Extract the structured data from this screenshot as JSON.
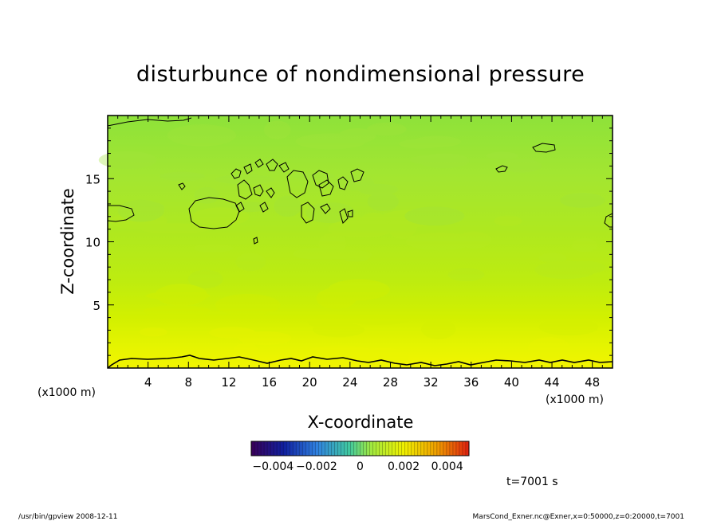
{
  "chart_data": {
    "type": "heatmap",
    "title": "disturbunce of nondimensional pressure",
    "xlabel": "X-coordinate",
    "ylabel": "Z-coordinate",
    "x_unit_left": "(x1000 m)",
    "x_unit_right": "(x1000 m)",
    "xlim": [
      0,
      50
    ],
    "ylim": [
      0,
      20
    ],
    "xticks": [
      4,
      8,
      12,
      16,
      20,
      24,
      28,
      32,
      36,
      40,
      44,
      48
    ],
    "yticks": [
      5,
      10,
      15
    ],
    "colorbar": {
      "range": [
        -0.005,
        0.005
      ],
      "tick_labels": [
        "−0.004",
        "−0.002",
        "0",
        "0.002",
        "0.004"
      ],
      "tick_values": [
        -0.004,
        -0.002,
        0,
        0.002,
        0.004
      ]
    },
    "field_levels": [
      {
        "z": 0.5,
        "value": 0.0028
      },
      {
        "z": 2,
        "value": 0.0022
      },
      {
        "z": 4,
        "value": 0.0016
      },
      {
        "z": 7,
        "value": 0.0011
      },
      {
        "z": 10,
        "value": 0.0008
      },
      {
        "z": 13,
        "value": 0.0004
      },
      {
        "z": 17,
        "value": 0.0003
      },
      {
        "z": 20,
        "value": 0.0001
      }
    ],
    "annotation_time": "t=7001 s"
  },
  "footer": {
    "left": "/usr/bin/gpview   2008-12-11",
    "right": "MarsCond_Exner.nc@Exner,x=0:50000,z=0:20000,t=7001"
  },
  "colors": {
    "field_high": "#ffff00",
    "field_mid": "#c8f000",
    "field_low": "#90e840"
  }
}
